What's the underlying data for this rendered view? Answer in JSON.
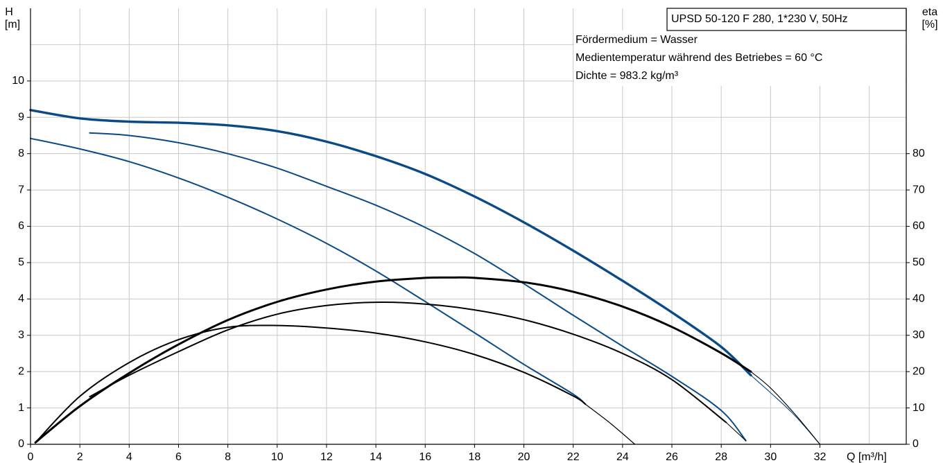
{
  "chart_data": {
    "type": "line",
    "title": "UPSD 50-120 F 280, 1*230 V, 50Hz",
    "annotations": [
      "Fördermedium = Wasser",
      "Medientemperatur während des Betriebes = 60 °C",
      "Dichte = 983.2 kg/m³"
    ],
    "x_axis": {
      "label": "Q [m³/h]",
      "range": [
        0,
        35.5
      ],
      "ticks": [
        0,
        2,
        4,
        6,
        8,
        10,
        12,
        14,
        16,
        18,
        20,
        22,
        24,
        26,
        28,
        30,
        32
      ]
    },
    "y_axis_left": {
      "label_line1": "H",
      "label_line2": "[m]",
      "range": [
        0,
        12
      ],
      "ticks": [
        0,
        1,
        2,
        3,
        4,
        5,
        6,
        7,
        8,
        9,
        10
      ]
    },
    "y_axis_right": {
      "label_line1": "eta",
      "label_line2": "[%]",
      "range": [
        0,
        120
      ],
      "ticks": [
        0,
        10,
        20,
        30,
        40,
        50,
        60,
        70,
        80
      ]
    },
    "grid": true,
    "colors": {
      "head": "#0a4a86",
      "efficiency": "#000000",
      "grid": "#c8c8c8"
    },
    "series": [
      {
        "kind": "head",
        "bold": true,
        "points": [
          [
            0,
            9.2
          ],
          [
            2,
            8.97
          ],
          [
            4,
            8.88
          ],
          [
            6,
            8.85
          ],
          [
            8,
            8.78
          ],
          [
            10,
            8.62
          ],
          [
            12,
            8.33
          ],
          [
            14,
            7.93
          ],
          [
            16,
            7.44
          ],
          [
            18,
            6.82
          ],
          [
            20,
            6.11
          ],
          [
            22,
            5.33
          ],
          [
            24,
            4.5
          ],
          [
            26,
            3.63
          ],
          [
            28,
            2.68
          ],
          [
            29.2,
            1.9
          ]
        ]
      },
      {
        "kind": "head",
        "bold": false,
        "points": [
          [
            29.2,
            1.9
          ],
          [
            30,
            1.42
          ],
          [
            31,
            0.78
          ],
          [
            32,
            0
          ]
        ]
      },
      {
        "kind": "head",
        "bold": false,
        "points": [
          [
            2.4,
            8.57
          ],
          [
            4,
            8.5
          ],
          [
            6,
            8.3
          ],
          [
            8,
            8.0
          ],
          [
            10,
            7.6
          ],
          [
            12,
            7.1
          ],
          [
            14,
            6.58
          ],
          [
            16,
            5.97
          ],
          [
            18,
            5.25
          ],
          [
            20,
            4.42
          ],
          [
            22,
            3.55
          ],
          [
            24,
            2.7
          ],
          [
            26,
            1.87
          ],
          [
            28,
            0.93
          ],
          [
            29,
            0.1
          ]
        ]
      },
      {
        "kind": "head",
        "bold": false,
        "points": [
          [
            0,
            8.42
          ],
          [
            2,
            8.13
          ],
          [
            4,
            7.78
          ],
          [
            6,
            7.33
          ],
          [
            8,
            6.8
          ],
          [
            10,
            6.2
          ],
          [
            12,
            5.53
          ],
          [
            14,
            4.77
          ],
          [
            16,
            3.93
          ],
          [
            18,
            3.07
          ],
          [
            20,
            2.2
          ],
          [
            22,
            1.38
          ],
          [
            22.5,
            1.1
          ]
        ]
      },
      {
        "kind": "head",
        "bold": false,
        "points": [
          [
            22.5,
            1.1
          ],
          [
            23.5,
            0.58
          ],
          [
            24.5,
            0
          ]
        ]
      },
      {
        "kind": "efficiency",
        "bold": true,
        "points": [
          [
            0.2,
            0.5
          ],
          [
            2,
            10.5
          ],
          [
            4,
            19.6
          ],
          [
            6,
            27.5
          ],
          [
            8,
            34.2
          ],
          [
            10,
            39.2
          ],
          [
            12,
            42.6
          ],
          [
            14,
            44.8
          ],
          [
            16,
            45.8
          ],
          [
            17,
            45.9
          ],
          [
            18,
            45.8
          ],
          [
            20,
            44.6
          ],
          [
            22,
            42.0
          ],
          [
            24,
            37.9
          ],
          [
            26,
            32.3
          ],
          [
            28,
            25.1
          ],
          [
            29.2,
            20
          ]
        ]
      },
      {
        "kind": "efficiency",
        "bold": false,
        "points": [
          [
            29.2,
            20
          ],
          [
            30,
            15.5
          ],
          [
            31,
            8.2
          ],
          [
            32,
            0
          ]
        ]
      },
      {
        "kind": "efficiency",
        "bold": false,
        "points": [
          [
            2.4,
            13.1
          ],
          [
            4,
            19.0
          ],
          [
            6,
            25.5
          ],
          [
            8,
            31.5
          ],
          [
            10,
            35.8
          ],
          [
            12,
            38.2
          ],
          [
            14,
            39.1
          ],
          [
            16,
            38.6
          ],
          [
            18,
            37.0
          ],
          [
            20,
            34.3
          ],
          [
            22,
            30.3
          ],
          [
            24,
            25.0
          ],
          [
            26,
            17.8
          ],
          [
            28.2,
            6.0
          ]
        ]
      },
      {
        "kind": "efficiency",
        "bold": false,
        "points": [
          [
            28.2,
            6.0
          ],
          [
            29,
            1.0
          ]
        ]
      },
      {
        "kind": "efficiency",
        "bold": false,
        "points": [
          [
            0.2,
            0.5
          ],
          [
            2,
            13.2
          ],
          [
            4,
            22.5
          ],
          [
            6,
            28.8
          ],
          [
            8,
            32.2
          ],
          [
            10,
            32.7
          ],
          [
            12,
            32.0
          ],
          [
            14,
            30.6
          ],
          [
            16,
            28.2
          ],
          [
            18,
            24.7
          ],
          [
            20,
            19.8
          ],
          [
            22,
            13.3
          ],
          [
            22.5,
            11.0
          ]
        ]
      },
      {
        "kind": "efficiency",
        "bold": false,
        "points": [
          [
            22.5,
            11.0
          ],
          [
            23.5,
            5.8
          ],
          [
            24.5,
            0
          ]
        ]
      }
    ]
  }
}
